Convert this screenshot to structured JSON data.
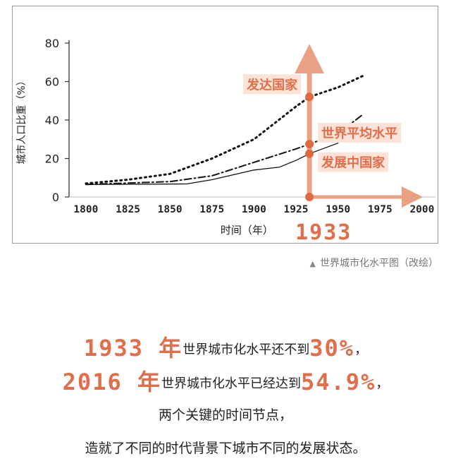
{
  "colors": {
    "accent": "#e06e4b",
    "axis": "#333333",
    "text": "#222222"
  },
  "chart_data": {
    "type": "line",
    "xlabel": "时间（年）",
    "ylabel": "城市人口比重（%）",
    "xlim": [
      1790,
      2008
    ],
    "ylim": [
      0,
      80
    ],
    "x_ticks": [
      1800,
      1825,
      1850,
      1875,
      1900,
      1925,
      1950,
      1975,
      2000
    ],
    "y_ticks": [
      0,
      20,
      40,
      60,
      80
    ],
    "x_tick_labels": [
      "1800",
      "1825",
      "1850",
      "1875",
      "1900",
      "1925",
      "1950",
      "1975",
      "2000"
    ],
    "y_tick_labels": [
      "0",
      "20",
      "40",
      "60",
      "80"
    ],
    "series": [
      {
        "name": "发达国家",
        "style": "dotted",
        "points": [
          [
            1800,
            7
          ],
          [
            1825,
            9
          ],
          [
            1850,
            12
          ],
          [
            1875,
            20
          ],
          [
            1900,
            30
          ],
          [
            1925,
            47
          ],
          [
            1933,
            52
          ],
          [
            1950,
            57
          ],
          [
            1965,
            63
          ]
        ]
      },
      {
        "name": "世界平均水平",
        "style": "dashdot",
        "points": [
          [
            1800,
            6.5
          ],
          [
            1850,
            8
          ],
          [
            1875,
            11
          ],
          [
            1900,
            18
          ],
          [
            1925,
            25
          ],
          [
            1933,
            27.5
          ],
          [
            1950,
            33
          ],
          [
            1965,
            43
          ]
        ]
      },
      {
        "name": "发展中国家",
        "style": "solid",
        "points": [
          [
            1800,
            6.5
          ],
          [
            1860,
            6.8
          ],
          [
            1875,
            9
          ],
          [
            1900,
            14
          ],
          [
            1910,
            15
          ],
          [
            1915,
            15.5
          ],
          [
            1925,
            19
          ],
          [
            1933,
            22.5
          ],
          [
            1950,
            28
          ]
        ]
      }
    ],
    "highlight": {
      "year_label": "1933",
      "x": 1933,
      "markers": [
        52,
        27.5,
        22.5,
        0
      ],
      "tags": [
        "发达国家",
        "世界平均水平",
        "发展中国家"
      ]
    }
  },
  "caption": {
    "icon": "triangle-up-icon",
    "text": "世界城市化水平图（改绘）"
  },
  "summary": {
    "line1": {
      "year": "1933 年",
      "text": "世界城市化水平还不到",
      "value": "30%",
      "end": "，"
    },
    "line2": {
      "year": "2016 年",
      "text": "世界城市化水平已经达到",
      "value": "54.9%",
      "end": "，"
    },
    "line3": "两个关键的时间节点，",
    "line4": "造就了不同的时代背景下城市不同的发展状态。"
  }
}
